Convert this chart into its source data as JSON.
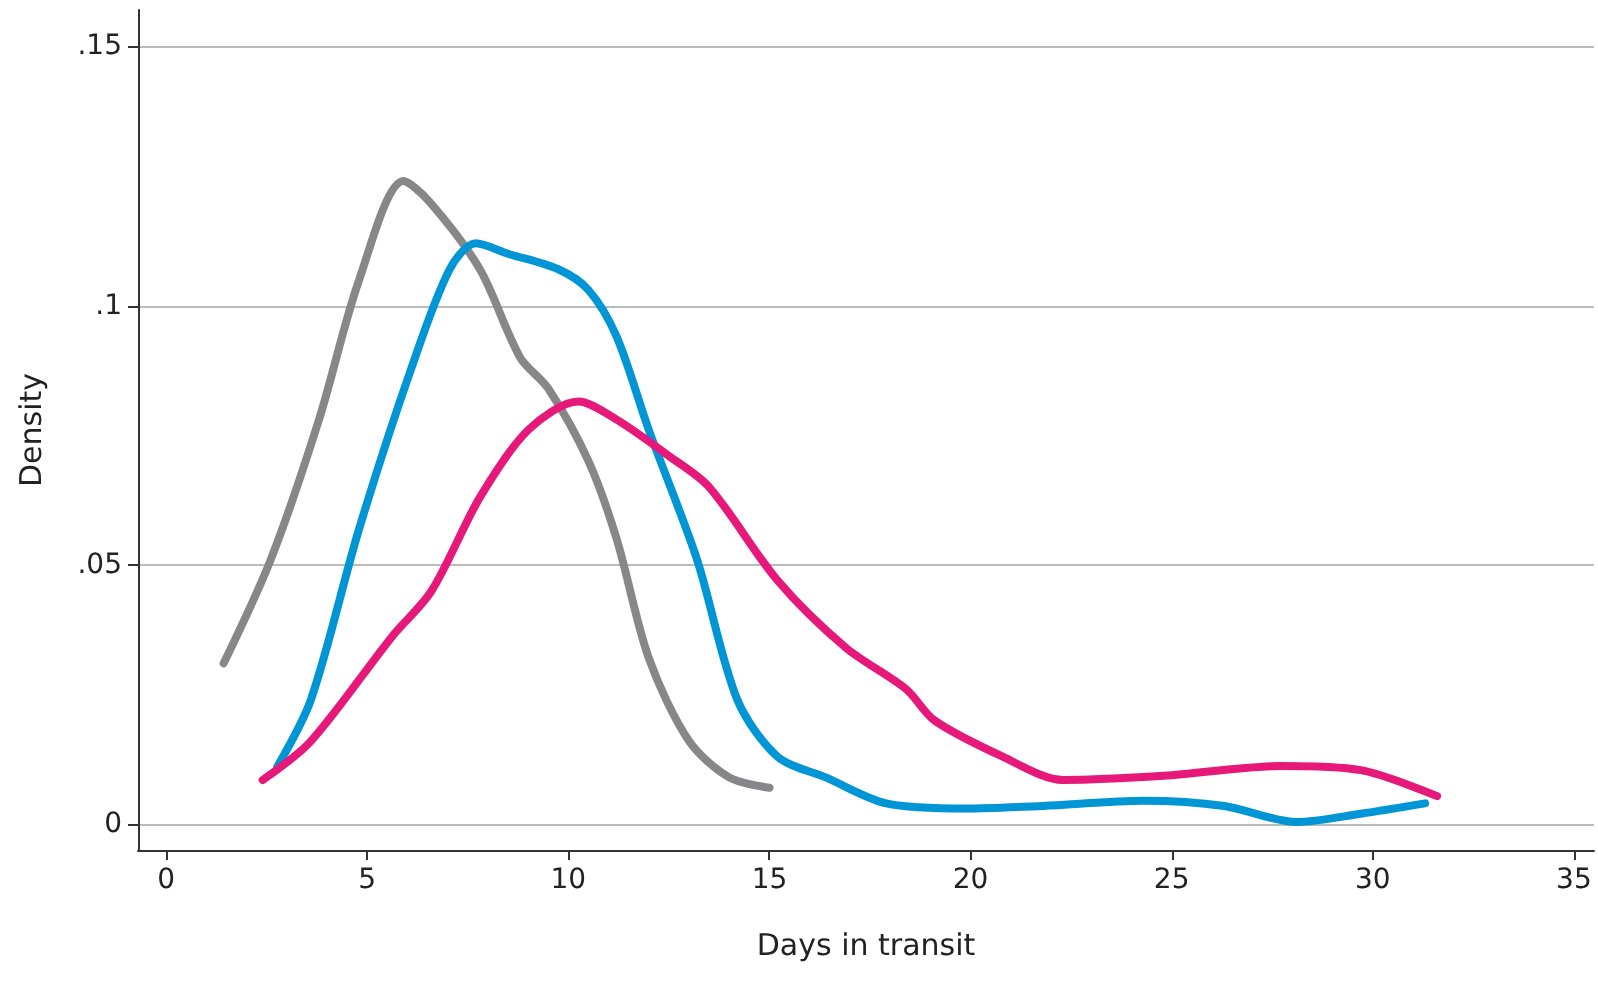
{
  "chart_data": {
    "type": "line",
    "xlabel": "Days in transit",
    "ylabel": "Density",
    "xlim": [
      -0.7,
      35.5
    ],
    "xticks": [
      0,
      5,
      10,
      15,
      20,
      25,
      30,
      35
    ],
    "ylim": [
      -0.005,
      0.157
    ],
    "yticks": [
      {
        "value": 0,
        "label": "0"
      },
      {
        "value": 0.05,
        "label": ".05"
      },
      {
        "value": 0.1,
        "label": ".1"
      },
      {
        "value": 0.15,
        "label": ".15"
      }
    ],
    "grid": "y",
    "marker": "none",
    "line_style": "solid",
    "series": [
      {
        "color": "#87878a",
        "x": [
          1.43,
          2.6,
          3.8,
          4.8,
          5.9,
          6.55,
          7.8,
          8.8,
          9.5,
          10.5,
          11.2,
          12,
          13,
          14,
          15
        ],
        "values": [
          0.031,
          0.051,
          0.078,
          0.105,
          0.124,
          0.12,
          0.107,
          0.09,
          0.084,
          0.07,
          0.055,
          0.032,
          0.016,
          0.009,
          0.007
        ]
      },
      {
        "color": "#0096d6",
        "x": [
          2.76,
          3.6,
          4.8,
          6.1,
          7.05,
          7.7,
          8.5,
          9.75,
          10.5,
          11.2,
          12,
          13.2,
          14.2,
          15.2,
          16.4,
          17.9,
          19.9,
          21.8,
          24.3,
          26.3,
          28.1,
          29.7,
          31.3
        ],
        "values": [
          0.011,
          0.024,
          0.057,
          0.088,
          0.107,
          0.112,
          0.11,
          0.107,
          0.103,
          0.094,
          0.076,
          0.051,
          0.024,
          0.013,
          0.009,
          0.004,
          0.003,
          0.0035,
          0.0045,
          0.0035,
          0.0004,
          0.002,
          0.004
        ]
      },
      {
        "color": "#e6197a",
        "x": [
          2.4,
          3.6,
          5.6,
          6.6,
          7.8,
          9,
          10.25,
          11.2,
          12.5,
          13.5,
          15.2,
          16.9,
          18.4,
          19.1,
          20.8,
          22.3,
          24.8,
          27.7,
          29.7,
          31.6
        ],
        "values": [
          0.0085,
          0.016,
          0.036,
          0.045,
          0.063,
          0.076,
          0.0815,
          0.078,
          0.071,
          0.065,
          0.047,
          0.034,
          0.026,
          0.02,
          0.013,
          0.0085,
          0.0093,
          0.0112,
          0.0104,
          0.0054
        ]
      }
    ]
  }
}
